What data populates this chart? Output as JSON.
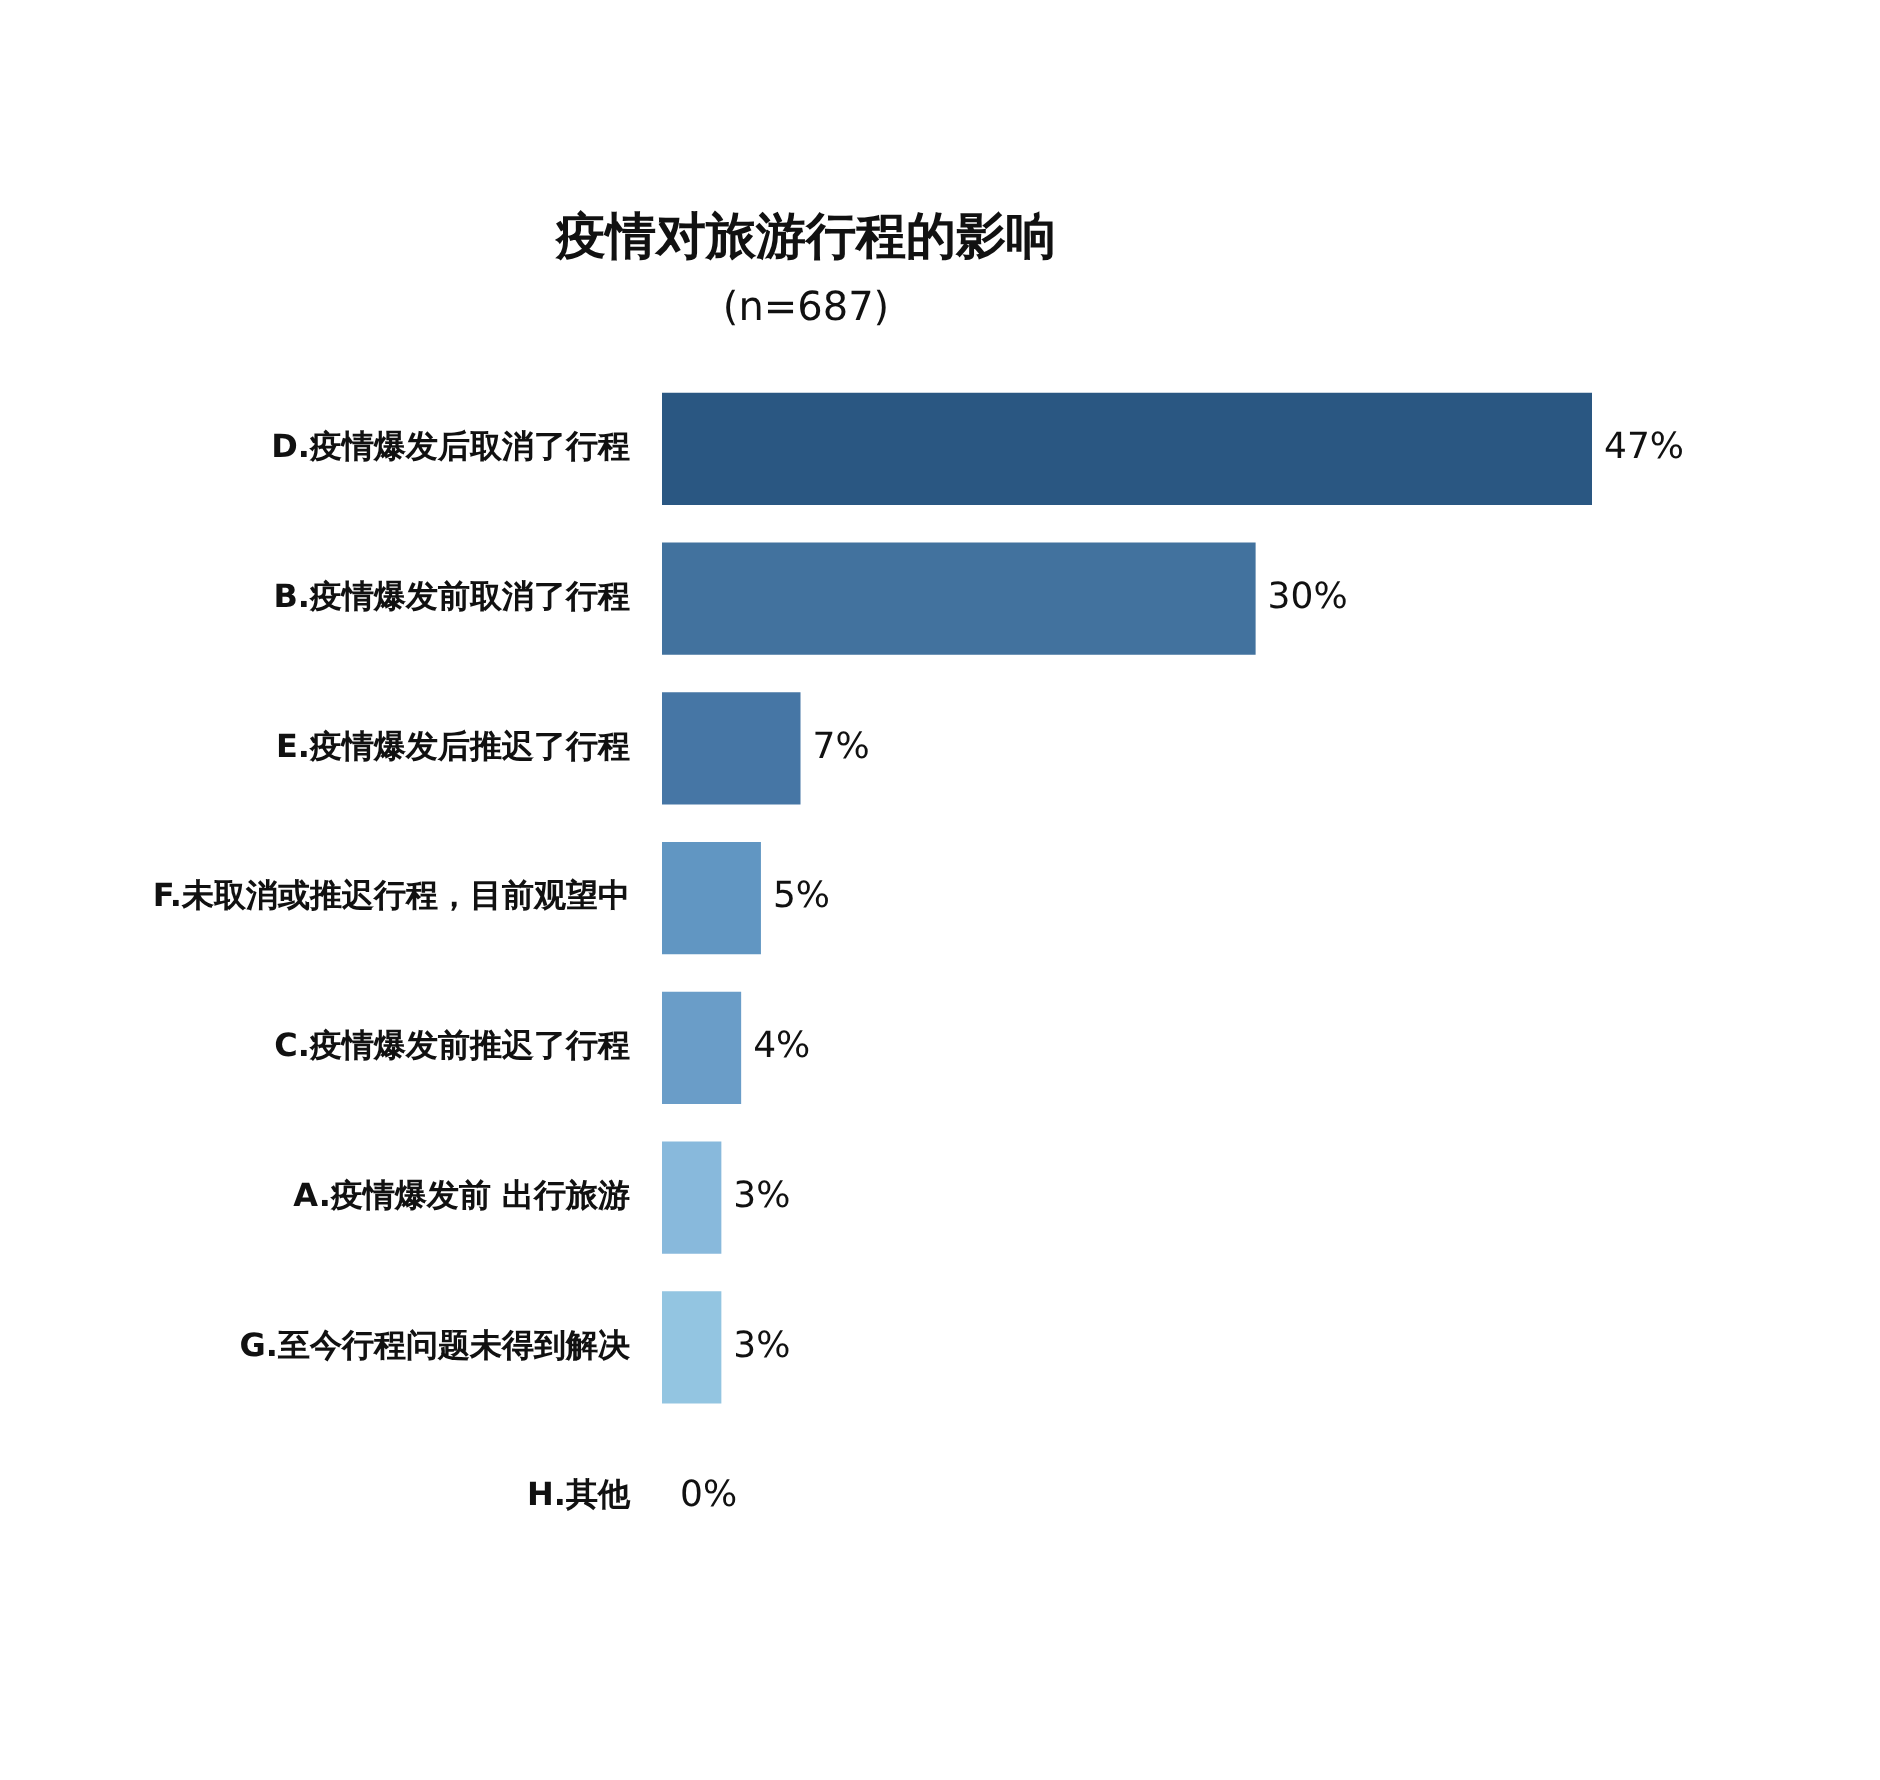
{
  "chart_data": {
    "type": "bar",
    "orientation": "horizontal",
    "title": "疫情对旅游行程的影响",
    "subtitle": "(n=687)",
    "categories": [
      "D.疫情爆发后取消了行程",
      "B.疫情爆发前取消了行程",
      "E.疫情爆发后推迟了行程",
      "F.未取消或推迟行程，目前观望中",
      "C.疫情爆发前推迟了行程",
      "A.疫情爆发前 出行旅游",
      "G.至今行程问题未得到解决",
      "H.其他"
    ],
    "values": [
      47,
      30,
      7,
      5,
      4,
      3,
      3,
      0
    ],
    "value_labels": [
      "47%",
      "30%",
      "7%",
      "5%",
      "4%",
      "3%",
      "3%",
      "0%"
    ],
    "colors": [
      "#2a5782",
      "#42729e",
      "#4676a5",
      "#6196c2",
      "#6a9dc8",
      "#88b9dc",
      "#93c5e1",
      "#b7dcf2"
    ],
    "legend": false
  }
}
